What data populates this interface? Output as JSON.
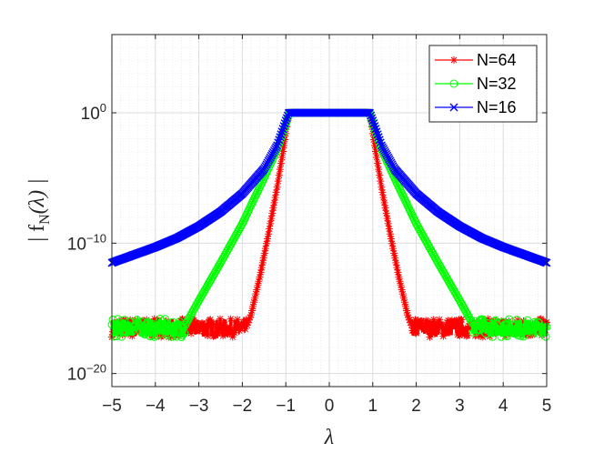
{
  "chart_data": {
    "type": "line",
    "title": "",
    "xlabel": "λ",
    "ylabel": "| f_N(λ) |",
    "ylabel_main": "| f",
    "ylabel_sub": "N",
    "ylabel_arg": "(λ) |",
    "yscale": "log",
    "xlim": [
      -5,
      5
    ],
    "ylim_exp": [
      -21,
      6
    ],
    "grid": "major and minor",
    "legend_position": "top-right",
    "x_ticks": [
      -5,
      -4,
      -3,
      -2,
      -1,
      0,
      1,
      2,
      3,
      4,
      5
    ],
    "x_tick_labels": [
      "−5",
      "−4",
      "−3",
      "−2",
      "−1",
      "0",
      "1",
      "2",
      "3",
      "4",
      "5"
    ],
    "y_ticks": [
      {
        "base": "10",
        "exp": "0",
        "value_exp": 0
      },
      {
        "base": "10",
        "exp": "−10",
        "value_exp": -10
      },
      {
        "base": "10",
        "exp": "−20",
        "value_exp": -20
      }
    ],
    "series": [
      {
        "name": "N=64",
        "color": "#ff0000",
        "marker": "asterisk",
        "flat_range": [
          -0.93,
          0.93
        ],
        "flat_value_exp": 0,
        "noise_floor_exp": -16.5,
        "noise_floor_edge": 1.9,
        "x": [
          -5,
          -2.0,
          -1.9,
          -1.8,
          -1.6,
          -1.4,
          -1.2,
          -1.0,
          -0.93,
          0,
          0.93,
          1.0,
          1.2,
          1.4,
          1.6,
          1.8,
          1.9,
          2.0,
          5
        ],
        "log10_y": [
          -16.5,
          -16.5,
          -16.4,
          -15.5,
          -12.6,
          -9.3,
          -5.7,
          -1.6,
          0,
          0,
          0,
          -1.6,
          -5.7,
          -9.3,
          -12.6,
          -15.5,
          -16.4,
          -16.5,
          -16.5
        ]
      },
      {
        "name": "N=32",
        "color": "#00ff00",
        "marker": "circle",
        "flat_range": [
          -0.93,
          0.93
        ],
        "flat_value_exp": 0,
        "noise_floor_exp": -16.5,
        "noise_floor_edge": 3.3,
        "x": [
          -5,
          -3.5,
          -3.3,
          -3.0,
          -2.5,
          -2.0,
          -1.5,
          -1.2,
          -1.0,
          -0.93,
          0,
          0.93,
          1.0,
          1.2,
          1.5,
          2.0,
          2.5,
          3.0,
          3.3,
          3.5,
          5
        ],
        "log10_y": [
          -16.5,
          -16.5,
          -16.2,
          -14.4,
          -11.5,
          -8.5,
          -5.0,
          -2.8,
          -0.9,
          0,
          0,
          0,
          -0.9,
          -2.8,
          -5.0,
          -8.5,
          -11.5,
          -14.4,
          -16.2,
          -16.5,
          -16.5
        ]
      },
      {
        "name": "N=16",
        "color": "#0000ff",
        "marker": "x",
        "flat_range": [
          -0.93,
          0.93
        ],
        "flat_value_exp": 0,
        "x": [
          -5,
          -4.5,
          -4,
          -3.5,
          -3,
          -2.5,
          -2,
          -1.5,
          -1.2,
          -1.0,
          -0.93,
          0,
          0.93,
          1.0,
          1.2,
          1.5,
          2,
          2.5,
          3,
          3.5,
          4,
          4.5,
          5
        ],
        "log10_y": [
          -11.5,
          -10.9,
          -10.3,
          -9.6,
          -8.7,
          -7.6,
          -6.2,
          -4.3,
          -2.5,
          -0.6,
          0,
          0,
          0,
          -0.6,
          -2.5,
          -4.3,
          -6.2,
          -7.6,
          -8.7,
          -9.6,
          -10.3,
          -10.9,
          -11.5
        ]
      }
    ]
  }
}
